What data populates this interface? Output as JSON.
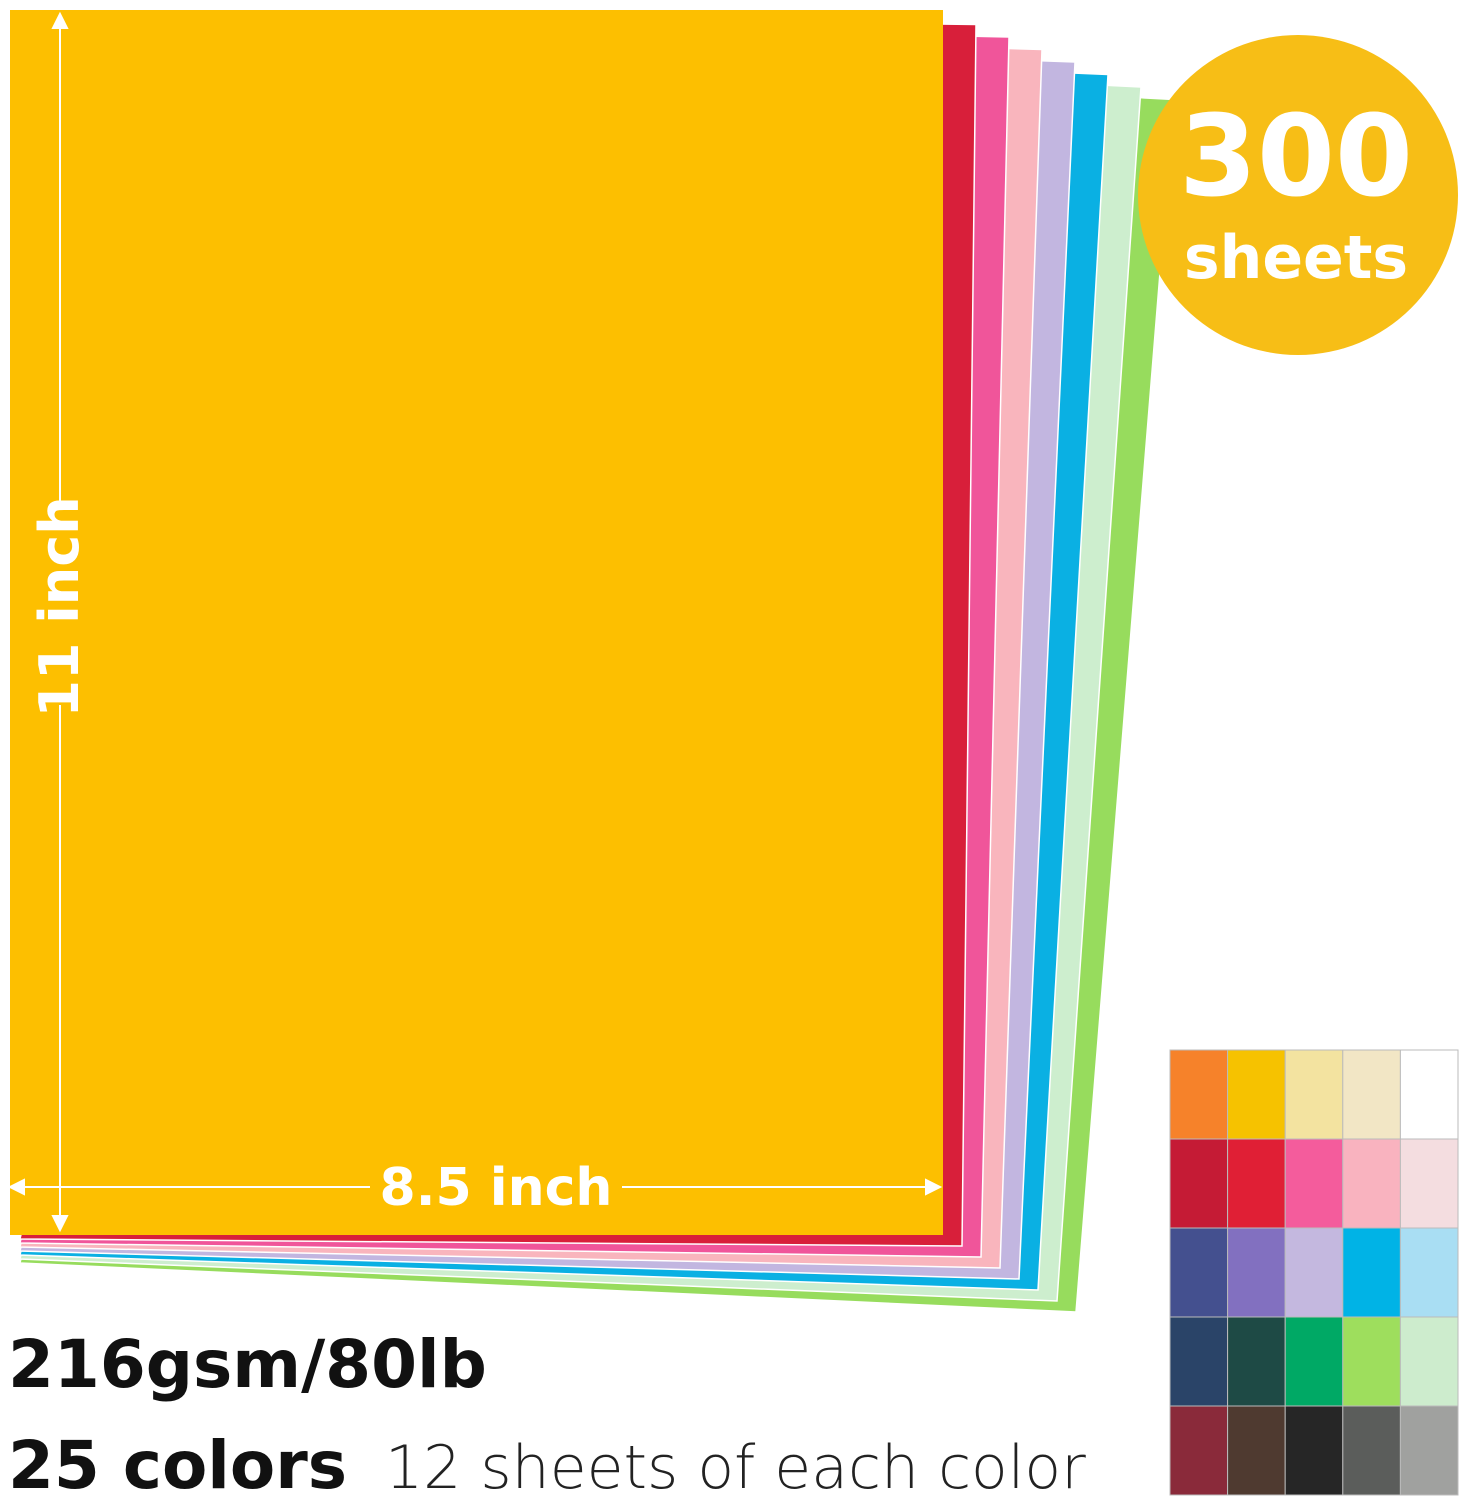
{
  "badge": {
    "count": "300",
    "unit": "sheets"
  },
  "dimensions": {
    "height": "11 inch",
    "width": "8.5 inch"
  },
  "specs": {
    "weight": "216gsm/80lb",
    "colors": "25 colors",
    "per_color": "12 sheets of each color"
  }
}
